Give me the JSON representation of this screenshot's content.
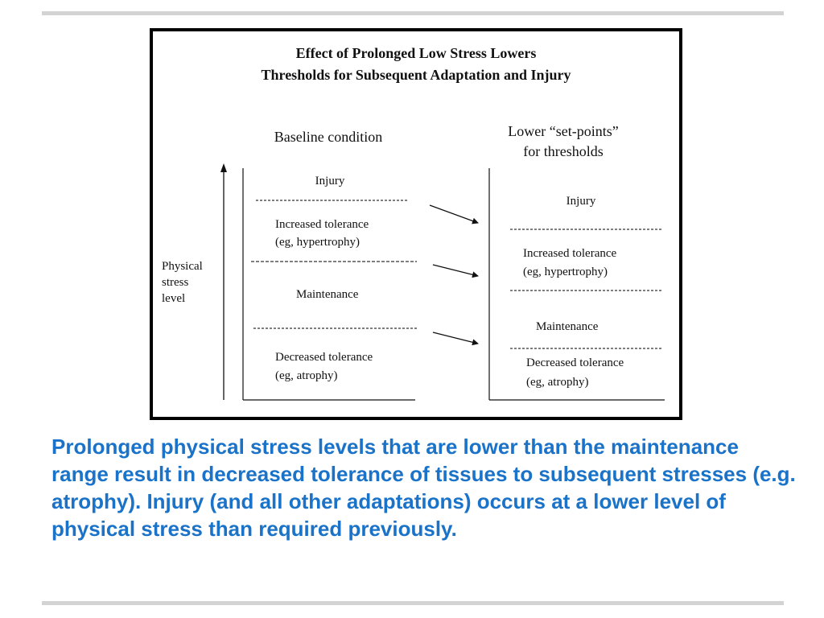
{
  "figure": {
    "title_line1": "Effect of Prolonged Low Stress Lowers",
    "title_line2": "Thresholds for Subsequent Adaptation and Injury",
    "axis_label_line1": "Physical",
    "axis_label_line2": "stress",
    "axis_label_line3": "level",
    "baseline": {
      "heading": "Baseline condition",
      "zone_injury": "Injury",
      "zone_increased_line1": "Increased tolerance",
      "zone_increased_line2": "(eg, hypertrophy)",
      "zone_maintenance": "Maintenance",
      "zone_decreased_line1": "Decreased tolerance",
      "zone_decreased_line2": "(eg, atrophy)"
    },
    "lowered": {
      "heading_line1": "Lower “set-points”",
      "heading_line2": "for thresholds",
      "zone_injury": "Injury",
      "zone_increased_line1": "Increased tolerance",
      "zone_increased_line2": "(eg, hypertrophy)",
      "zone_maintenance": "Maintenance",
      "zone_decreased_line1": "Decreased tolerance",
      "zone_decreased_line2": "(eg, atrophy)"
    }
  },
  "caption": "Prolonged physical stress levels that are lower than the maintenance range result in decreased tolerance of tissues to subsequent stresses (e.g. atrophy). Injury (and all other adaptations) occurs at a lower level of physical stress than required previously."
}
